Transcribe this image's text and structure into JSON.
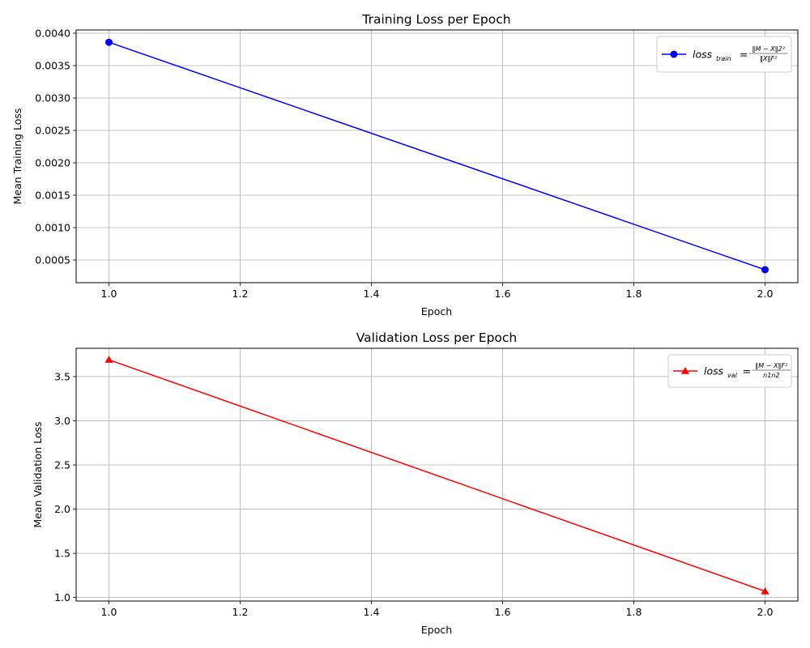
{
  "chart_data": [
    {
      "type": "line",
      "title": "Training Loss per Epoch",
      "xlabel": "Epoch",
      "ylabel": "Mean Training Loss",
      "x": [
        1.0,
        2.0
      ],
      "series": [
        {
          "name": "loss_train = ‖M−X‖2² / ‖X‖F²",
          "values": [
            0.00386,
            0.00035
          ],
          "color": "#0000ff",
          "marker": "circle",
          "legend": {
            "main": "loss",
            "sub": "train",
            "eq": "=",
            "num": "‖M − X‖2²",
            "den": "‖X‖F²"
          }
        }
      ],
      "xlim": [
        0.95,
        2.05
      ],
      "ylim": [
        0.00015,
        0.00405
      ],
      "xticks": [
        "1.0",
        "1.2",
        "1.4",
        "1.6",
        "1.8",
        "2.0"
      ],
      "xtick_values": [
        1.0,
        1.2,
        1.4,
        1.6,
        1.8,
        2.0
      ],
      "yticks": [
        "0.0005",
        "0.0010",
        "0.0015",
        "0.0020",
        "0.0025",
        "0.0030",
        "0.0035",
        "0.0040"
      ],
      "ytick_values": [
        0.0005,
        0.001,
        0.0015,
        0.002,
        0.0025,
        0.003,
        0.0035,
        0.004
      ],
      "grid": true,
      "legend_position": "upper right"
    },
    {
      "type": "line",
      "title": "Validation Loss per Epoch",
      "xlabel": "Epoch",
      "ylabel": "Mean Validation Loss",
      "x": [
        1.0,
        2.0
      ],
      "series": [
        {
          "name": "loss_val = ‖M−X‖F² / n1n2",
          "values": [
            3.69,
            1.07
          ],
          "color": "#ff0000",
          "marker": "triangle",
          "legend": {
            "main": "loss",
            "sub": "val",
            "eq": "=",
            "num": "‖M − X‖F²",
            "den": "n1n2"
          }
        }
      ],
      "xlim": [
        0.95,
        2.05
      ],
      "ylim": [
        0.96,
        3.82
      ],
      "xticks": [
        "1.0",
        "1.2",
        "1.4",
        "1.6",
        "1.8",
        "2.0"
      ],
      "xtick_values": [
        1.0,
        1.2,
        1.4,
        1.6,
        1.8,
        2.0
      ],
      "yticks": [
        "1.0",
        "1.5",
        "2.0",
        "2.5",
        "3.0",
        "3.5"
      ],
      "ytick_values": [
        1.0,
        1.5,
        2.0,
        2.5,
        3.0,
        3.5
      ],
      "grid": true,
      "legend_position": "upper right"
    }
  ]
}
